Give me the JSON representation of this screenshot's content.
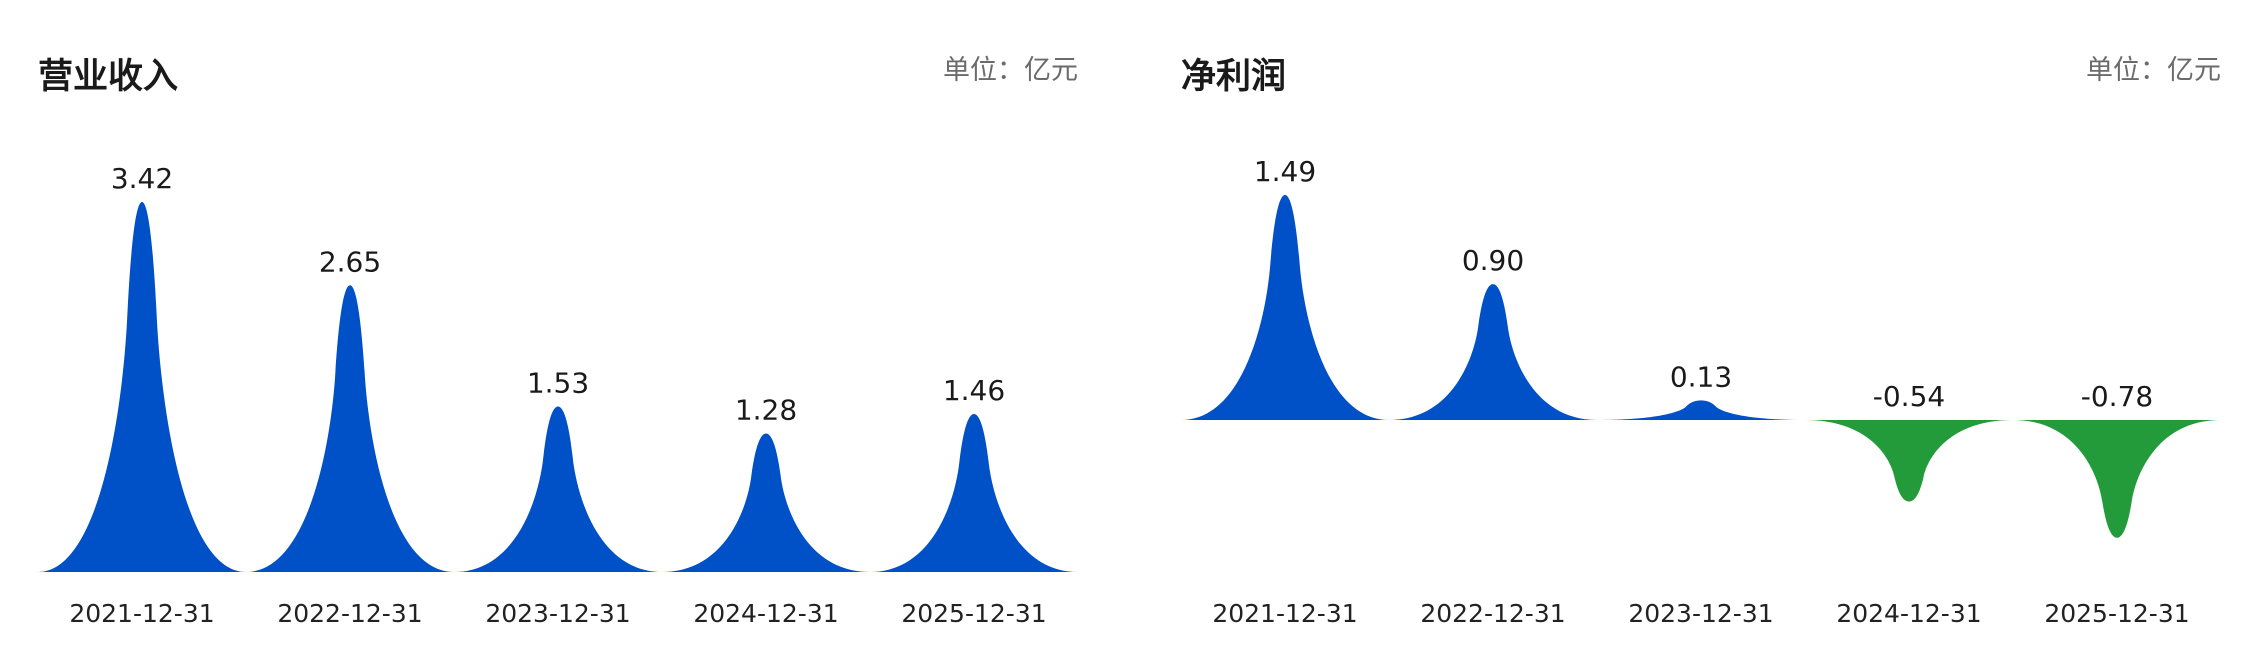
{
  "chart_data": [
    {
      "type": "area",
      "title": "营业收入",
      "unit_label": "单位：亿元",
      "categories": [
        "2021-12-31",
        "2022-12-31",
        "2023-12-31",
        "2024-12-31",
        "2025-12-31"
      ],
      "values": [
        3.42,
        2.65,
        1.53,
        1.28,
        1.46
      ],
      "value_labels": [
        "3.42",
        "2.65",
        "1.53",
        "1.28",
        "1.46"
      ],
      "colors": {
        "positive": "#0050c8",
        "negative": "#239b3a"
      },
      "grid": false,
      "legend": "none"
    },
    {
      "type": "area",
      "title": "净利润",
      "unit_label": "单位：亿元",
      "categories": [
        "2021-12-31",
        "2022-12-31",
        "2023-12-31",
        "2024-12-31",
        "2025-12-31"
      ],
      "values": [
        1.49,
        0.9,
        0.13,
        -0.54,
        -0.78
      ],
      "value_labels": [
        "1.49",
        "0.90",
        "0.13",
        "-0.54",
        "-0.78"
      ],
      "colors": {
        "positive": "#0050c8",
        "negative": "#239b3a"
      },
      "grid": false,
      "legend": "none"
    }
  ]
}
